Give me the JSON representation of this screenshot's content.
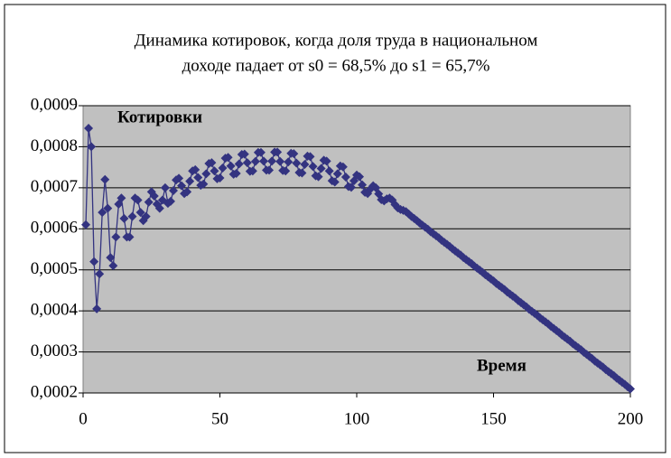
{
  "chart_data": {
    "type": "line",
    "title": [
      "Динамика котировок, когда доля труда в национальном",
      "доходе падает от s0 = 68,5% до s1 = 65,7%"
    ],
    "annotations": [
      "Котировки",
      "Время"
    ],
    "x": [
      1,
      2,
      3,
      4,
      5,
      6,
      7,
      8,
      9,
      10,
      11,
      12,
      13,
      14,
      15,
      16,
      17,
      18,
      19,
      20,
      21,
      22,
      23,
      24,
      25,
      26,
      27,
      28,
      29,
      30,
      31,
      32,
      33,
      34,
      35,
      36,
      37,
      38,
      39,
      40,
      41,
      42,
      43,
      44,
      45,
      46,
      47,
      48,
      49,
      50,
      51,
      52,
      53,
      54,
      55,
      56,
      57,
      58,
      59,
      60,
      61,
      62,
      63,
      64,
      65,
      66,
      67,
      68,
      69,
      70,
      71,
      72,
      73,
      74,
      75,
      76,
      77,
      78,
      79,
      80,
      81,
      82,
      83,
      84,
      85,
      86,
      87,
      88,
      89,
      90,
      91,
      92,
      93,
      94,
      95,
      96,
      97,
      98,
      99,
      100,
      101,
      102,
      103,
      104,
      105,
      106,
      107,
      108,
      109,
      110,
      111,
      112,
      113,
      114,
      115,
      116,
      117,
      118,
      119,
      120,
      121,
      122,
      123,
      124,
      125,
      126,
      127,
      128,
      129,
      130,
      131,
      132,
      133,
      134,
      135,
      136,
      137,
      138,
      139,
      140,
      141,
      142,
      143,
      144,
      145,
      146,
      147,
      148,
      149,
      150,
      151,
      152,
      153,
      154,
      155,
      156,
      157,
      158,
      159,
      160,
      161,
      162,
      163,
      164,
      165,
      166,
      167,
      168,
      169,
      170,
      171,
      172,
      173,
      174,
      175,
      176,
      177,
      178,
      179,
      180,
      181,
      182,
      183,
      184,
      185,
      186,
      187,
      188,
      189,
      190,
      191,
      192,
      193,
      194,
      195,
      196,
      197,
      198,
      199,
      200
    ],
    "series": [
      {
        "color": "#333380",
        "values": [
          0.00061,
          0.000845,
          0.0008,
          0.00052,
          0.000405,
          0.00049,
          0.00064,
          0.00072,
          0.00065,
          0.00053,
          0.00051,
          0.00058,
          0.00066,
          0.000675,
          0.000625,
          0.00058,
          0.00058,
          0.00063,
          0.000675,
          0.00067,
          0.00064,
          0.00062,
          0.00063,
          0.000665,
          0.00069,
          0.00068,
          0.00066,
          0.00065,
          0.00067,
          0.0007,
          0.000662,
          0.000667,
          0.000693,
          0.000719,
          0.000723,
          0.000705,
          0.000686,
          0.00069,
          0.000716,
          0.000741,
          0.000744,
          0.000725,
          0.000706,
          0.000709,
          0.000734,
          0.000759,
          0.000761,
          0.000741,
          0.000722,
          0.000724,
          0.000748,
          0.000772,
          0.000774,
          0.000753,
          0.000733,
          0.000735,
          0.000758,
          0.000781,
          0.000782,
          0.000761,
          0.00074,
          0.000741,
          0.000764,
          0.000786,
          0.000786,
          0.000765,
          0.000743,
          0.000743,
          0.000765,
          0.000787,
          0.000787,
          0.000764,
          0.000742,
          0.000741,
          0.000763,
          0.000784,
          0.000783,
          0.00076,
          0.000737,
          0.000736,
          0.000757,
          0.000777,
          0.000776,
          0.000752,
          0.000729,
          0.000727,
          0.000747,
          0.000767,
          0.000765,
          0.000741,
          0.000717,
          0.000714,
          0.000734,
          0.000753,
          0.000751,
          0.000726,
          0.000703,
          0.000701,
          0.000717,
          0.000731,
          0.000727,
          0.000707,
          0.000689,
          0.000686,
          0.000697,
          0.000705,
          0.0007,
          0.000685,
          0.000671,
          0.000668,
          0.000673,
          0.000675,
          0.00067,
          0.000659,
          0.000651,
          0.000647,
          0.000645,
          0.000642,
          0.000636,
          0.00063,
          0.000625,
          0.00062,
          0.000614,
          0.000609,
          0.000604,
          0.000599,
          0.000593,
          0.000588,
          0.000583,
          0.000578,
          0.000572,
          0.000567,
          0.000562,
          0.000557,
          0.000551,
          0.000546,
          0.000541,
          0.000536,
          0.00053,
          0.000525,
          0.00052,
          0.000515,
          0.000509,
          0.000504,
          0.000499,
          0.000494,
          0.000488,
          0.000483,
          0.000478,
          0.000473,
          0.000467,
          0.000462,
          0.000457,
          0.000452,
          0.000446,
          0.000441,
          0.000436,
          0.000431,
          0.000425,
          0.00042,
          0.000415,
          0.00041,
          0.000404,
          0.000399,
          0.000394,
          0.000389,
          0.000383,
          0.000378,
          0.000373,
          0.000368,
          0.000362,
          0.000357,
          0.000352,
          0.000347,
          0.000341,
          0.000336,
          0.000331,
          0.000326,
          0.00032,
          0.000315,
          0.00031,
          0.000305,
          0.000299,
          0.000294,
          0.000289,
          0.000284,
          0.000278,
          0.000273,
          0.000268,
          0.000263,
          0.000257,
          0.000252,
          0.000247,
          0.000242,
          0.000236,
          0.000231,
          0.000226,
          0.000221,
          0.000215,
          0.00021
        ]
      }
    ],
    "xlim": [
      0,
      200
    ],
    "xticks": [
      0,
      50,
      100,
      150,
      200
    ],
    "ylim": [
      0.0002,
      0.0009
    ],
    "yticks": [
      {
        "value": 0.0002,
        "label": "0,0002"
      },
      {
        "value": 0.0003,
        "label": "0,0003"
      },
      {
        "value": 0.0004,
        "label": "0,0004"
      },
      {
        "value": 0.0005,
        "label": "0,0005"
      },
      {
        "value": 0.0006,
        "label": "0,0006"
      },
      {
        "value": 0.0007,
        "label": "0,0007"
      },
      {
        "value": 0.0008,
        "label": "0,0008"
      },
      {
        "value": 0.0009,
        "label": "0,0009"
      }
    ],
    "grid": true
  }
}
